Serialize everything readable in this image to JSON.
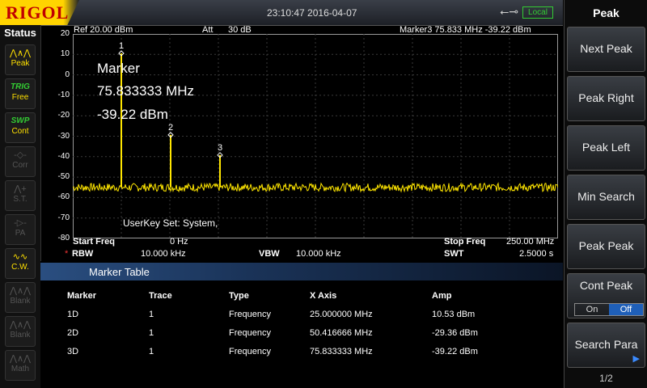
{
  "header": {
    "logo": "RIGOL",
    "datetime": "23:10:47 2016-04-07",
    "usb_icon": "usb-icon",
    "remote_state": "Local"
  },
  "status": {
    "title": "Status",
    "items": [
      {
        "icon": "peak-icon",
        "label": "Peak",
        "active": true
      },
      {
        "icon": "trig-icon",
        "top": "TRIG",
        "label": "Free",
        "active": true
      },
      {
        "icon": "swp-icon",
        "top": "SWP",
        "label": "Cont",
        "active": true
      },
      {
        "icon": "corr-icon",
        "label": "Corr",
        "active": false
      },
      {
        "icon": "st-icon",
        "label": "S.T.",
        "active": false
      },
      {
        "icon": "pa-icon",
        "label": "PA",
        "active": false
      },
      {
        "icon": "cw-icon",
        "label": "C.W.",
        "active": true
      },
      {
        "icon": "blank-icon",
        "label": "Blank",
        "active": false
      },
      {
        "icon": "blank-icon",
        "label": "Blank",
        "active": false
      },
      {
        "icon": "math-icon",
        "label": "Math",
        "active": false
      }
    ]
  },
  "screen": {
    "ref": "Ref  20.00 dBm",
    "att": "Att",
    "att_value": "30 dB",
    "marker_readout": "Marker3  75.833 MHz  -39.22 dBm",
    "marker_title": "Marker",
    "marker_freq": "75.833333 MHz",
    "marker_amp": "-39.22 dBm",
    "userkey": "UserKey Set:   System,",
    "start_freq_label": "Start Freq",
    "start_freq": "0 Hz",
    "stop_freq_label": "Stop Freq",
    "stop_freq": "250.00 MHz",
    "rbw_mark": "*",
    "rbw_label": "RBW",
    "rbw": "10.000 kHz",
    "vbw_label": "VBW",
    "vbw": "10.000 kHz",
    "swt_label": "SWT",
    "swt": "2.5000 s",
    "y_ticks": [
      "20",
      "10",
      "0",
      "-10",
      "-20",
      "-30",
      "-40",
      "-50",
      "-60",
      "-70",
      "-80"
    ]
  },
  "chart_data": {
    "type": "line",
    "xlabel": "",
    "ylabel": "",
    "xlim": [
      0,
      250
    ],
    "ylim": [
      -80,
      20
    ],
    "grid": true,
    "noise_floor": -55,
    "markers": [
      {
        "id": "1",
        "x": 25.0,
        "y": 10.53
      },
      {
        "id": "2",
        "x": 50.416666,
        "y": -29.36
      },
      {
        "id": "3",
        "x": 75.833333,
        "y": -39.22
      }
    ],
    "trace_color": "#ffe600"
  },
  "marker_table": {
    "title": "Marker Table",
    "headers": [
      "Marker",
      "Trace",
      "Type",
      "X Axis",
      "Amp"
    ],
    "rows": [
      [
        "1D",
        "1",
        "Frequency",
        "25.000000 MHz",
        "10.53 dBm"
      ],
      [
        "2D",
        "1",
        "Frequency",
        "50.416666 MHz",
        "-29.36 dBm"
      ],
      [
        "3D",
        "1",
        "Frequency",
        "75.833333 MHz",
        "-39.22 dBm"
      ]
    ]
  },
  "menu": {
    "title": "Peak",
    "buttons": [
      "Next Peak",
      "Peak Right",
      "Peak Left",
      "Min Search",
      "Peak Peak"
    ],
    "cont_peak": {
      "label": "Cont Peak",
      "on": "On",
      "off": "Off"
    },
    "search_para": "Search Para",
    "page": "1/2"
  }
}
